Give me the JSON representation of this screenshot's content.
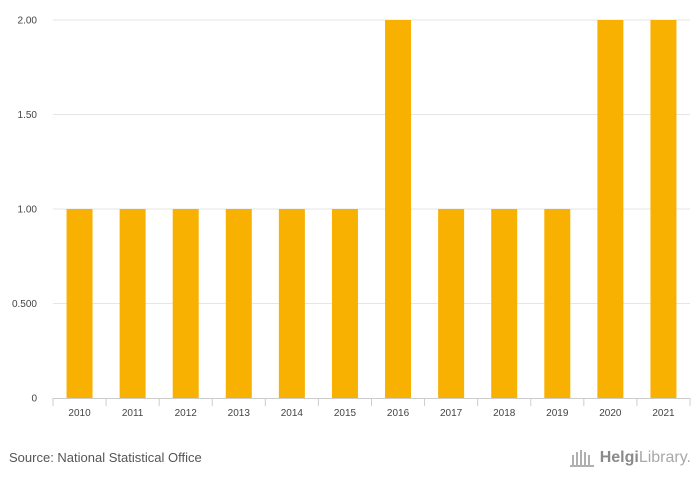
{
  "chart_data": {
    "type": "bar",
    "categories": [
      "2010",
      "2011",
      "2012",
      "2013",
      "2014",
      "2015",
      "2016",
      "2017",
      "2018",
      "2019",
      "2020",
      "2021"
    ],
    "values": [
      1,
      1,
      1,
      1,
      1,
      1,
      2,
      1,
      1,
      1,
      2,
      2
    ],
    "ylim": [
      0,
      2
    ],
    "yticks": [
      0,
      0.5,
      1,
      1.5,
      2
    ],
    "ytick_labels": [
      "0",
      "0.500",
      "1.00",
      "1.50",
      "2.00"
    ],
    "bar_color": "#f8b100",
    "grid": true,
    "title": "",
    "xlabel": "",
    "ylabel": ""
  },
  "footer": {
    "source": "Source: National Statistical Office"
  },
  "logo": {
    "brand": "Helgi",
    "suffix": "Library."
  },
  "colors": {
    "gridline": "#e6e6e6",
    "axis": "#cccccc"
  }
}
